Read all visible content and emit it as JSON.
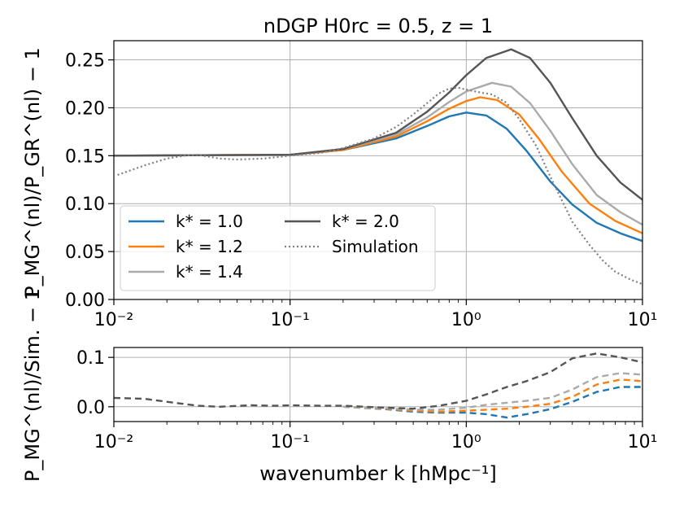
{
  "chart_data": [
    {
      "type": "line",
      "title": "nDGP H0rc = 0.5, z = 1",
      "ylabel": "P_MG^(nl)/P_GR^(nl) − 1",
      "xlabel": "",
      "xscale": "log",
      "xlim": [
        0.01,
        10
      ],
      "ylim": [
        0.0,
        0.27
      ],
      "yticks": [
        "0.00",
        "0.05",
        "0.10",
        "0.15",
        "0.20",
        "0.25"
      ],
      "xticks": [
        "10⁻²",
        "10⁻¹",
        "10⁰",
        "10¹"
      ],
      "grid": true,
      "legend": "lower-left",
      "series": [
        {
          "name": "k* = 1.0",
          "color": "#1f77b4",
          "style": "solid",
          "x": [
            0.01,
            0.1,
            0.2,
            0.4,
            0.6,
            0.8,
            1.0,
            1.3,
            1.7,
            2.2,
            3.0,
            4.0,
            5.5,
            7.5,
            10
          ],
          "y": [
            0.15,
            0.151,
            0.156,
            0.168,
            0.181,
            0.191,
            0.195,
            0.192,
            0.178,
            0.155,
            0.123,
            0.099,
            0.08,
            0.069,
            0.061
          ]
        },
        {
          "name": "k* = 1.2",
          "color": "#ff7f0e",
          "style": "solid",
          "x": [
            0.01,
            0.1,
            0.2,
            0.4,
            0.6,
            0.8,
            1.0,
            1.2,
            1.5,
            2.0,
            2.6,
            3.5,
            5.0,
            7.0,
            10
          ],
          "y": [
            0.15,
            0.151,
            0.156,
            0.17,
            0.186,
            0.199,
            0.207,
            0.211,
            0.208,
            0.193,
            0.167,
            0.133,
            0.1,
            0.082,
            0.069
          ]
        },
        {
          "name": "k* = 1.4",
          "color": "#aaaaaa",
          "style": "solid",
          "x": [
            0.01,
            0.1,
            0.2,
            0.4,
            0.6,
            0.8,
            1.0,
            1.4,
            1.8,
            2.3,
            3.0,
            4.0,
            5.5,
            7.5,
            10
          ],
          "y": [
            0.15,
            0.151,
            0.157,
            0.172,
            0.19,
            0.206,
            0.217,
            0.226,
            0.222,
            0.205,
            0.176,
            0.141,
            0.109,
            0.091,
            0.078
          ]
        },
        {
          "name": "k* = 2.0",
          "color": "#555555",
          "style": "solid",
          "x": [
            0.01,
            0.1,
            0.2,
            0.4,
            0.6,
            0.8,
            1.0,
            1.3,
            1.8,
            2.3,
            3.0,
            4.0,
            5.5,
            7.5,
            10
          ],
          "y": [
            0.15,
            0.151,
            0.157,
            0.174,
            0.196,
            0.216,
            0.234,
            0.252,
            0.261,
            0.252,
            0.226,
            0.189,
            0.15,
            0.122,
            0.104
          ]
        },
        {
          "name": "Simulation",
          "color": "#808080",
          "style": "dotted",
          "x": [
            0.0105,
            0.015,
            0.02,
            0.025,
            0.03,
            0.04,
            0.05,
            0.07,
            0.1,
            0.15,
            0.2,
            0.3,
            0.4,
            0.5,
            0.6,
            0.7,
            0.8,
            0.9,
            1.0,
            1.2,
            1.4,
            1.7,
            2.0,
            2.5,
            3.0,
            3.5,
            4.0,
            5.0,
            6.0,
            7.0,
            8.5,
            10
          ],
          "y": [
            0.13,
            0.14,
            0.147,
            0.15,
            0.151,
            0.147,
            0.146,
            0.147,
            0.15,
            0.153,
            0.158,
            0.168,
            0.18,
            0.193,
            0.205,
            0.215,
            0.22,
            0.221,
            0.219,
            0.216,
            0.214,
            0.205,
            0.188,
            0.16,
            0.128,
            0.103,
            0.081,
            0.057,
            0.04,
            0.029,
            0.021,
            0.016
          ]
        }
      ]
    },
    {
      "type": "line",
      "title": "",
      "ylabel": "P_MG^(nl)/Sim. − 1",
      "xlabel": "wavenumber k [hMpc⁻¹]",
      "xscale": "log",
      "xlim": [
        0.01,
        10
      ],
      "ylim": [
        -0.03,
        0.12
      ],
      "yticks": [
        "0.0",
        "0.1"
      ],
      "xticks": [
        "10⁻²",
        "10⁻¹",
        "10⁰",
        "10¹"
      ],
      "grid": true,
      "series": [
        {
          "name": "k* = 1.0",
          "color": "#1f77b4",
          "style": "dashed",
          "x": [
            0.2,
            0.35,
            0.5,
            0.7,
            1.0,
            1.3,
            1.7,
            2.2,
            3.0,
            4.0,
            5.5,
            7.5,
            10
          ],
          "y": [
            0.0,
            -0.005,
            -0.01,
            -0.012,
            -0.012,
            -0.015,
            -0.022,
            -0.015,
            -0.005,
            0.01,
            0.03,
            0.04,
            0.04
          ]
        },
        {
          "name": "k* = 1.2",
          "color": "#ff7f0e",
          "style": "dashed",
          "x": [
            0.2,
            0.35,
            0.5,
            0.7,
            1.0,
            1.3,
            1.7,
            2.2,
            3.0,
            4.0,
            5.5,
            7.5,
            10
          ],
          "y": [
            0.0,
            -0.004,
            -0.008,
            -0.01,
            -0.008,
            -0.006,
            -0.004,
            0.0,
            0.006,
            0.02,
            0.045,
            0.055,
            0.052
          ]
        },
        {
          "name": "k* = 1.4",
          "color": "#aaaaaa",
          "style": "dashed",
          "x": [
            0.2,
            0.35,
            0.5,
            0.7,
            1.0,
            1.3,
            1.7,
            2.2,
            3.0,
            4.0,
            5.5,
            7.5,
            10
          ],
          "y": [
            0.0,
            -0.003,
            -0.006,
            -0.006,
            -0.002,
            0.004,
            0.008,
            0.012,
            0.018,
            0.035,
            0.06,
            0.068,
            0.065
          ]
        },
        {
          "name": "k* = 2.0",
          "color": "#555555",
          "style": "dashed",
          "x": [
            0.01,
            0.015,
            0.02,
            0.03,
            0.04,
            0.06,
            0.08,
            0.1,
            0.15,
            0.2,
            0.35,
            0.5,
            0.7,
            1.0,
            1.3,
            1.7,
            2.2,
            3.0,
            4.0,
            5.5,
            7.5,
            10
          ],
          "y": [
            0.018,
            0.016,
            0.01,
            0.002,
            0.0,
            0.003,
            0.002,
            0.003,
            0.002,
            0.002,
            -0.002,
            -0.004,
            0.002,
            0.012,
            0.025,
            0.04,
            0.052,
            0.07,
            0.098,
            0.108,
            0.1,
            0.09
          ]
        }
      ]
    }
  ]
}
